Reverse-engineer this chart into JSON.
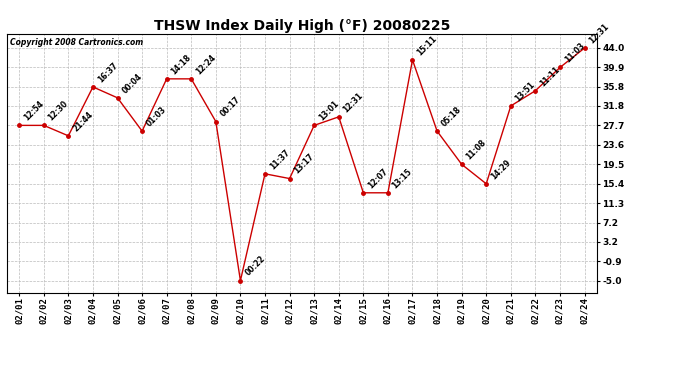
{
  "title": "THSW Index Daily High (°F) 20080225",
  "copyright": "Copyright 2008 Cartronics.com",
  "x_labels": [
    "02/01",
    "02/02",
    "02/03",
    "02/04",
    "02/05",
    "02/06",
    "02/07",
    "02/08",
    "02/09",
    "02/10",
    "02/11",
    "02/12",
    "02/13",
    "02/14",
    "02/15",
    "02/16",
    "02/17",
    "02/18",
    "02/19",
    "02/20",
    "02/21",
    "02/22",
    "02/23",
    "02/24"
  ],
  "y_values": [
    27.7,
    27.7,
    25.5,
    35.8,
    33.5,
    26.5,
    37.5,
    37.5,
    28.5,
    -5.0,
    17.5,
    16.5,
    27.7,
    29.5,
    13.5,
    13.5,
    41.5,
    26.5,
    19.5,
    15.4,
    31.8,
    35.0,
    39.9,
    44.0
  ],
  "point_labels": [
    "12:54",
    "12:30",
    "21:44",
    "16:37",
    "00:04",
    "01:03",
    "14:18",
    "12:24",
    "00:17",
    "00:22",
    "11:37",
    "13:17",
    "13:01",
    "12:31",
    "12:07",
    "13:15",
    "15:11",
    "05:18",
    "11:08",
    "14:29",
    "13:51",
    "11:11",
    "11:03",
    "12:31"
  ],
  "y_ticks": [
    -5.0,
    -0.9,
    3.2,
    7.2,
    11.3,
    15.4,
    19.5,
    23.6,
    27.7,
    31.8,
    35.8,
    39.9,
    44.0
  ],
  "ylim": [
    -7.5,
    47.0
  ],
  "line_color": "#cc0000",
  "marker_color": "#cc0000",
  "bg_color": "#ffffff",
  "grid_color": "#bbbbbb",
  "title_fontsize": 10,
  "label_fontsize": 5.5,
  "tick_fontsize": 6.5,
  "copyright_fontsize": 5.5
}
